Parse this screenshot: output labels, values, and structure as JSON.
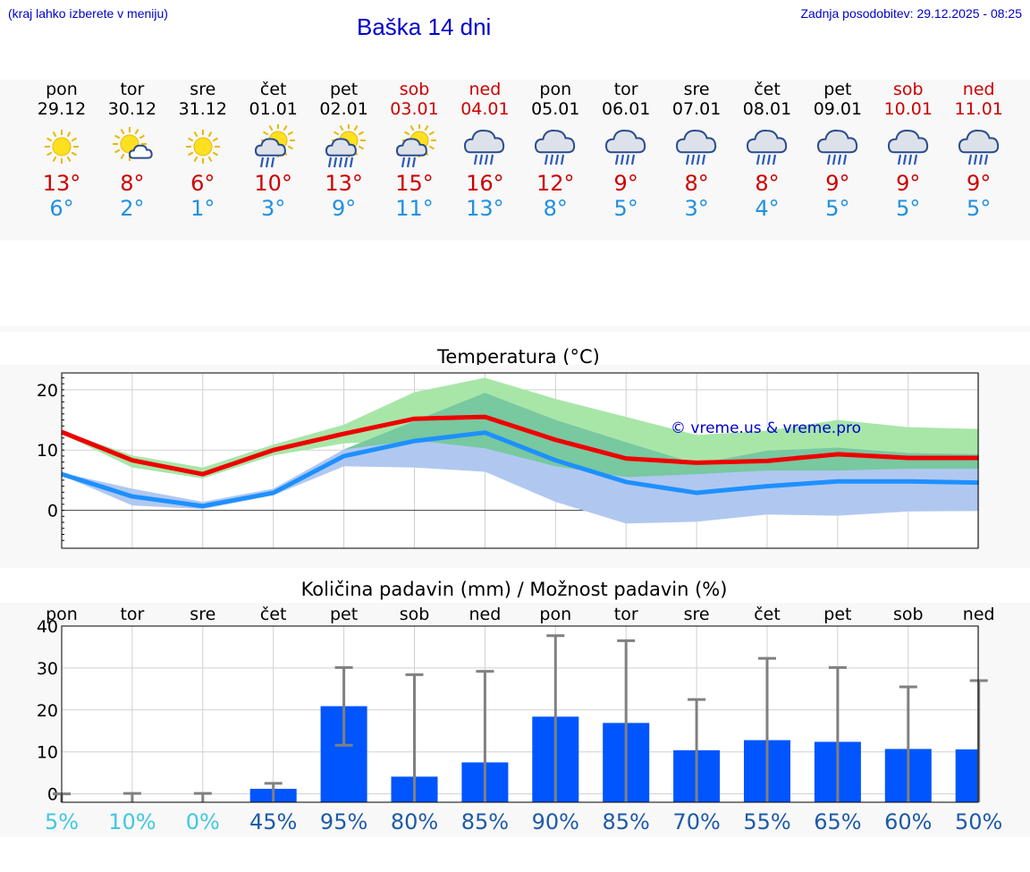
{
  "header": {
    "menu_hint": "(kraj lahko izberete v meniju)",
    "title": "Baška 14 dni",
    "last_update": "Zadnja posodobitev: 29.12.2025 - 08:25"
  },
  "days": [
    {
      "name": "pon",
      "date": "29.12",
      "icon": "sun-icon",
      "max": "13°",
      "min": "6°",
      "weekend": false
    },
    {
      "name": "tor",
      "date": "30.12",
      "icon": "sun-cloud-icon",
      "max": "8°",
      "min": "2°",
      "weekend": false
    },
    {
      "name": "sre",
      "date": "31.12",
      "icon": "sun-icon",
      "max": "6°",
      "min": "1°",
      "weekend": false
    },
    {
      "name": "čet",
      "date": "01.01",
      "icon": "sun-cloud-rain-icon",
      "max": "10°",
      "min": "3°",
      "weekend": false
    },
    {
      "name": "pet",
      "date": "02.01",
      "icon": "sun-cloud-heavy-rain-icon",
      "max": "13°",
      "min": "9°",
      "weekend": false
    },
    {
      "name": "sob",
      "date": "03.01",
      "icon": "sun-cloud-rain-icon",
      "max": "15°",
      "min": "11°",
      "weekend": true
    },
    {
      "name": "ned",
      "date": "04.01",
      "icon": "cloud-rain-icon",
      "max": "16°",
      "min": "13°",
      "weekend": true
    },
    {
      "name": "pon",
      "date": "05.01",
      "icon": "cloud-rain-icon",
      "max": "12°",
      "min": "8°",
      "weekend": false
    },
    {
      "name": "tor",
      "date": "06.01",
      "icon": "cloud-rain-icon",
      "max": "9°",
      "min": "5°",
      "weekend": false
    },
    {
      "name": "sre",
      "date": "07.01",
      "icon": "cloud-rain-icon",
      "max": "8°",
      "min": "3°",
      "weekend": false
    },
    {
      "name": "čet",
      "date": "08.01",
      "icon": "cloud-rain-icon",
      "max": "8°",
      "min": "4°",
      "weekend": false
    },
    {
      "name": "pet",
      "date": "09.01",
      "icon": "cloud-rain-icon",
      "max": "9°",
      "min": "5°",
      "weekend": false
    },
    {
      "name": "sob",
      "date": "10.01",
      "icon": "cloud-rain-icon",
      "max": "9°",
      "min": "5°",
      "weekend": true
    },
    {
      "name": "ned",
      "date": "11.01",
      "icon": "cloud-rain-icon",
      "max": "9°",
      "min": "5°",
      "weekend": true
    }
  ],
  "colors": {
    "max_line": "#ee0000",
    "min_line": "#1e90ff",
    "max_band": "#a8e6a8",
    "min_band": "#b0c8f0",
    "overlap_band": "#78c8a0",
    "bar": "#0055ff",
    "whisker": "#808080",
    "prob_low": "#40c8e0",
    "prob_high": "#1e5aa8"
  },
  "chart_data": [
    {
      "type": "line",
      "title": "Temperatura (°C)",
      "watermark": "© vreme.us & vreme.pro",
      "ylim": [
        -6.3,
        22.8
      ],
      "yticks": [
        0,
        10,
        20
      ],
      "x": [
        0,
        1,
        2,
        3,
        4,
        5,
        6,
        7,
        8,
        9,
        10,
        11,
        12,
        13
      ],
      "series": [
        {
          "name": "max",
          "values": [
            13,
            8.3,
            6,
            10,
            12.7,
            15.2,
            15.5,
            11.7,
            8.6,
            7.9,
            8.2,
            9.3,
            8.7,
            8.7
          ],
          "band_low": [
            12.7,
            7.1,
            5.3,
            9.1,
            11.1,
            11.6,
            10.3,
            7.3,
            5.5,
            6.0,
            6.6,
            6.6,
            6.9,
            6.9
          ],
          "band_high": [
            13.2,
            9.1,
            7.1,
            10.9,
            14.2,
            19.6,
            22.0,
            18.5,
            15.5,
            12.5,
            13.2,
            15.0,
            13.8,
            13.5
          ]
        },
        {
          "name": "min",
          "values": [
            6,
            2.3,
            0.7,
            2.9,
            9,
            11.5,
            12.9,
            8.3,
            4.7,
            2.9,
            4,
            4.8,
            4.8,
            4.6
          ],
          "band_low": [
            5.8,
            0.8,
            0.2,
            2.5,
            7.3,
            7.1,
            6.4,
            1.4,
            -2.2,
            -1.9,
            -0.7,
            -0.9,
            -0.2,
            -0.1
          ],
          "band_high": [
            6.2,
            3.6,
            1.4,
            3.6,
            10.1,
            14.8,
            19.5,
            15.0,
            11.3,
            7.7,
            9.9,
            10.4,
            9.5,
            9.3
          ]
        }
      ]
    },
    {
      "type": "bar",
      "title": "Količina padavin (mm) / Možnost padavin (%)",
      "categories": [
        "pon",
        "tor",
        "sre",
        "čet",
        "pet",
        "sob",
        "ned",
        "pon",
        "tor",
        "sre",
        "čet",
        "pet",
        "sob",
        "ned"
      ],
      "ylim": [
        -2,
        40
      ],
      "yticks": [
        0,
        10,
        20,
        30,
        40
      ],
      "values": [
        0,
        0,
        0,
        1.2,
        20.9,
        4.1,
        7.5,
        18.4,
        16.9,
        10.4,
        12.8,
        12.4,
        10.7,
        10.6
      ],
      "whisker_low": [
        0,
        0,
        0,
        0,
        11.6,
        0,
        0,
        0,
        0,
        0,
        0,
        0,
        0,
        0
      ],
      "whisker_high": [
        0,
        0.1,
        0.1,
        2.5,
        30.1,
        28.4,
        29.2,
        37.7,
        36.5,
        22.5,
        32.3,
        30.1,
        25.5,
        27.0
      ],
      "probability": [
        "5%",
        "10%",
        "0%",
        "45%",
        "95%",
        "80%",
        "85%",
        "90%",
        "85%",
        "70%",
        "55%",
        "65%",
        "60%",
        "50%"
      ]
    }
  ]
}
